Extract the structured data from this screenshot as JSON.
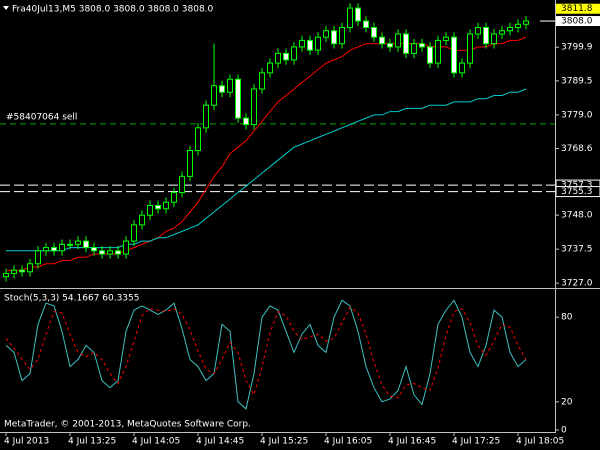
{
  "chart_data": [
    {
      "type": "candlestick",
      "title": "Fra40Jul13,M5  3808.0 3808.0 3808.0 3808.0",
      "categories": [
        "4 Jul 2013",
        null,
        null,
        null,
        null,
        null,
        null,
        null,
        "4 Jul 13:25",
        null,
        null,
        null,
        null,
        null,
        null,
        null,
        "4 Jul 14:05",
        null,
        null,
        null,
        null,
        null,
        null,
        null,
        "4 Jul 14:45",
        null,
        null,
        null,
        null,
        null,
        null,
        null,
        "4 Jul 15:25",
        null,
        null,
        null,
        null,
        null,
        null,
        null,
        "4 Jul 16:05",
        null,
        null,
        null,
        null,
        null,
        null,
        null,
        "4 Jul 16:45",
        null,
        null,
        null,
        null,
        null,
        null,
        null,
        "4 Jul 17:25",
        null,
        null,
        null,
        null,
        null,
        null,
        null,
        "4 Jul 18:05",
        null
      ],
      "open": [
        3729,
        3730,
        3731,
        3730.5,
        3733,
        3737,
        3738,
        3737,
        3739,
        3739,
        3740,
        3738,
        3737,
        3736,
        3737,
        3736,
        3740,
        3745,
        3748,
        3751,
        3750,
        3752,
        3755,
        3760,
        3768,
        3775,
        3782,
        3788,
        3786,
        3790,
        3778,
        3776,
        3787,
        3792,
        3795,
        3798,
        3796,
        3800,
        3802,
        3799,
        3803,
        3805,
        3801,
        3806,
        3812,
        3808,
        3806,
        3803,
        3801,
        3800,
        3804,
        3798,
        3801,
        3800,
        3795,
        3802,
        3803,
        3792,
        3795,
        3804,
        3806,
        3801,
        3804,
        3805,
        3806,
        3807
      ],
      "high": [
        3731.5,
        3732.5,
        3732.5,
        3734.5,
        3738.5,
        3739.5,
        3739.5,
        3740.5,
        3740.5,
        3741.5,
        3741.5,
        3739.5,
        3738.5,
        3738.5,
        3738.5,
        3741.5,
        3746.5,
        3749.5,
        3752.5,
        3752.5,
        3753.5,
        3756.5,
        3761.5,
        3769.5,
        3776.5,
        3783.5,
        3801,
        3789.5,
        3791.5,
        3791.5,
        3779.5,
        3788.5,
        3793.5,
        3796.5,
        3799.5,
        3799.5,
        3801.5,
        3803.5,
        3803.5,
        3804.5,
        3806.5,
        3806.5,
        3807.5,
        3813.5,
        3813.5,
        3809.5,
        3807.5,
        3804.5,
        3802.5,
        3805.5,
        3805.5,
        3802.5,
        3802.5,
        3801.5,
        3803.5,
        3804.5,
        3804.5,
        3796.5,
        3805.5,
        3807.5,
        3807.5,
        3805.5,
        3806.5,
        3807.5,
        3808.5,
        3809.5
      ],
      "low": [
        3727.5,
        3728.5,
        3729,
        3729,
        3731.5,
        3735.5,
        3735.5,
        3735.5,
        3737.5,
        3737.5,
        3736.5,
        3735.5,
        3734.5,
        3734.5,
        3734.5,
        3734.5,
        3738.5,
        3743.5,
        3746.5,
        3748.5,
        3748.5,
        3750.5,
        3753.5,
        3758.5,
        3766.5,
        3773.5,
        3780.5,
        3784.5,
        3784.5,
        3776.5,
        3774.5,
        3774.5,
        3785.5,
        3790.5,
        3793.5,
        3794.5,
        3794.5,
        3798.5,
        3797.5,
        3797.5,
        3801.5,
        3799.5,
        3799.5,
        3804.5,
        3806.5,
        3804.5,
        3801.5,
        3799.5,
        3798.5,
        3798.5,
        3796.5,
        3796.5,
        3798.5,
        3793.5,
        3793.5,
        3800.5,
        3790.5,
        3790.5,
        3793.5,
        3802.5,
        3799.5,
        3799.5,
        3802.5,
        3803.5,
        3804.5,
        3805.5
      ],
      "close": [
        3730,
        3731,
        3730.5,
        3733,
        3737,
        3738,
        3737,
        3739,
        3739,
        3740,
        3738,
        3737,
        3736,
        3737,
        3736,
        3740,
        3745,
        3748,
        3751,
        3750,
        3752,
        3755,
        3760,
        3768,
        3775,
        3782,
        3788,
        3786,
        3790,
        3778,
        3776,
        3787,
        3792,
        3795,
        3798,
        3796,
        3800,
        3802,
        3799,
        3803,
        3805,
        3801,
        3806,
        3812,
        3808,
        3806,
        3803,
        3801,
        3800,
        3804,
        3798,
        3801,
        3800,
        3795,
        3802,
        3803,
        3792,
        3795,
        3804,
        3806,
        3801,
        3804,
        3805,
        3806,
        3807,
        3808
      ],
      "up_color": "#000000",
      "down_color": "#ffffff",
      "candle_color": "#00ff00",
      "lines": [
        {
          "color": "#ff0000",
          "values": [
            3731,
            3731,
            3731,
            3732,
            3732,
            3733,
            3733,
            3734,
            3734,
            3735,
            3735,
            3736,
            3736,
            3736,
            3736,
            3737,
            3738,
            3739,
            3740,
            3741,
            3743,
            3744,
            3746,
            3749,
            3752,
            3756,
            3760,
            3763,
            3767,
            3769,
            3771,
            3774,
            3777,
            3780,
            3783,
            3785,
            3787,
            3789,
            3791,
            3793,
            3795,
            3796,
            3797,
            3799,
            3800,
            3801,
            3801,
            3801,
            3801,
            3801,
            3801,
            3801,
            3801,
            3800,
            3800,
            3800,
            3799,
            3799,
            3799,
            3800,
            3800,
            3801,
            3801,
            3802,
            3802,
            3803
          ]
        },
        {
          "color": "#00cccc",
          "values": [
            3737,
            3737,
            3737,
            3737,
            3737,
            3737,
            3737,
            3737,
            3738,
            3738,
            3738,
            3738,
            3738,
            3738,
            3738,
            3739,
            3739,
            3740,
            3740,
            3741,
            3741,
            3742,
            3743,
            3744,
            3745,
            3747,
            3749,
            3751,
            3753,
            3755,
            3757,
            3759,
            3761,
            3763,
            3765,
            3767,
            3769,
            3770,
            3771,
            3772,
            3773,
            3774,
            3775,
            3776,
            3777,
            3778,
            3779,
            3779,
            3780,
            3780,
            3781,
            3781,
            3781,
            3782,
            3782,
            3782,
            3783,
            3783,
            3783,
            3784,
            3784,
            3785,
            3785,
            3786,
            3786,
            3787
          ]
        }
      ],
      "ylim": [
        3725.5,
        3814.5
      ],
      "yticks": [
        {
          "value": 3727,
          "label": "3727.0"
        },
        3737.5,
        {
          "value": 3748,
          "label": "3748.0"
        },
        3768.6,
        {
          "value": 3779,
          "label": "3779.0"
        },
        3789.5,
        3799.9
      ],
      "order_level": {
        "label": "#58407064 sell",
        "value": 3776.2
      },
      "price_lines": [
        3757.3,
        3755.3
      ],
      "ask": 3811.8,
      "bid": {
        "value": 3808,
        "label": "3808.0"
      }
    },
    {
      "type": "line",
      "title": "Stoch(5,3,3) 54.1667 60.3355",
      "annotation": "MetaTrader, © 2001-2013, MetaQuotes Software Corp.",
      "ylim": [
        0,
        100
      ],
      "yticks": [
        80,
        20,
        0
      ],
      "series": [
        {
          "color": "#40c0c0",
          "dashed": false,
          "values": [
            60,
            55,
            35,
            40,
            75,
            90,
            88,
            70,
            45,
            50,
            60,
            55,
            35,
            30,
            35,
            70,
            85,
            88,
            85,
            82,
            85,
            90,
            72,
            50,
            45,
            35,
            40,
            75,
            70,
            20,
            15,
            40,
            80,
            88,
            85,
            70,
            55,
            68,
            75,
            60,
            55,
            80,
            92,
            88,
            70,
            45,
            30,
            20,
            22,
            28,
            45,
            25,
            18,
            40,
            75,
            85,
            92,
            80,
            55,
            45,
            60,
            85,
            80,
            55,
            45,
            50
          ]
        },
        {
          "color": "#ff0000",
          "dashed": true,
          "values": [
            65,
            58,
            50,
            43,
            50,
            68,
            84,
            83,
            68,
            55,
            52,
            55,
            50,
            40,
            33,
            45,
            63,
            81,
            86,
            85,
            84,
            86,
            82,
            71,
            56,
            43,
            40,
            50,
            62,
            55,
            35,
            25,
            45,
            69,
            84,
            81,
            70,
            64,
            66,
            68,
            63,
            65,
            76,
            87,
            83,
            68,
            48,
            32,
            24,
            23,
            32,
            33,
            30,
            28,
            44,
            67,
            84,
            86,
            76,
            60,
            53,
            63,
            75,
            73,
            60,
            50
          ]
        }
      ]
    }
  ]
}
